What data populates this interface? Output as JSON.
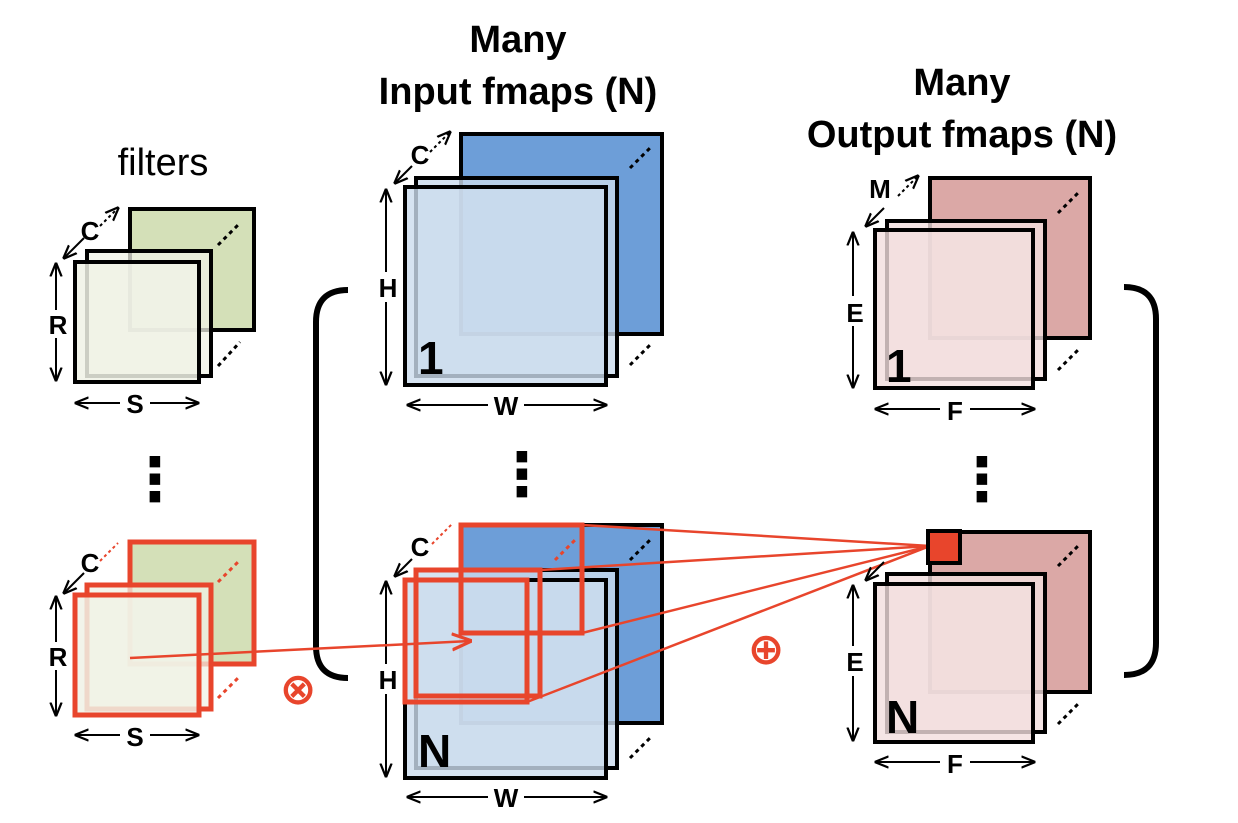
{
  "titles": {
    "filters": "filters",
    "input_line1": "Many",
    "input_line2": "Input fmaps (N)",
    "output_line1": "Many",
    "output_line2": "Output fmaps (N)"
  },
  "dims": {
    "filter_channels": "C",
    "filter_height": "R",
    "filter_width": "S",
    "input_channels": "C",
    "input_height": "H",
    "input_width": "W",
    "output_channels": "M",
    "output_height": "E",
    "output_width": "F"
  },
  "indices": {
    "first": "1",
    "last": "N"
  },
  "operators": {
    "multiply": "⊗",
    "accumulate": "⊕"
  },
  "ellipsis": "⋮",
  "colors": {
    "filter_back": "#d4e0b8",
    "filter_front": "#f0f2e6",
    "input_back": "#6d9ed8",
    "input_front": "#ccdcee",
    "output_back": "#dba8a6",
    "output_front": "#f2dede",
    "highlight": "#e8452c",
    "stroke": "#000000"
  }
}
